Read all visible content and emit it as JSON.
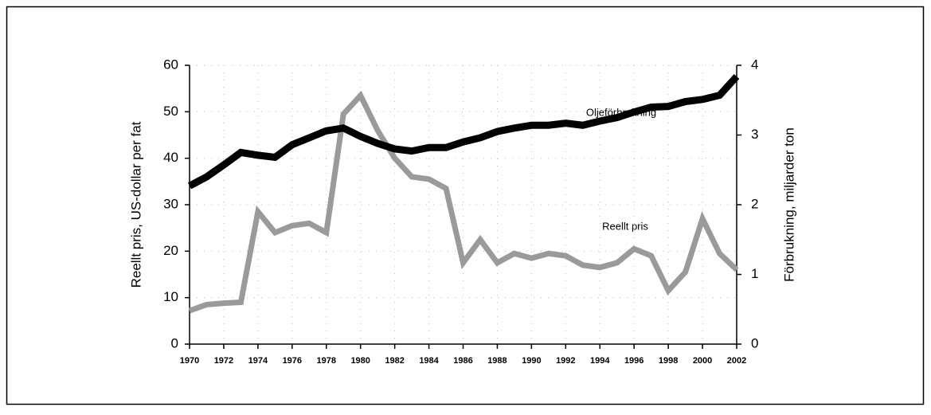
{
  "chart_data": {
    "type": "line",
    "x": [
      1970,
      1971,
      1972,
      1973,
      1974,
      1975,
      1976,
      1977,
      1978,
      1979,
      1980,
      1981,
      1982,
      1983,
      1984,
      1985,
      1986,
      1987,
      1988,
      1989,
      1990,
      1991,
      1992,
      1993,
      1994,
      1995,
      1996,
      1997,
      1998,
      1999,
      2000,
      2001,
      2002
    ],
    "xlim": [
      1970,
      2002
    ],
    "xticks": [
      1970,
      1972,
      1974,
      1976,
      1978,
      1980,
      1982,
      1984,
      1986,
      1988,
      1990,
      1992,
      1994,
      1996,
      1998,
      2000,
      2002
    ],
    "ylabel": "Reellt pris, US-dollar per fat",
    "ylim": [
      0,
      60
    ],
    "yticks": [
      0,
      10,
      20,
      30,
      40,
      50,
      60
    ],
    "y2label": "Förbrukning, miljarder ton",
    "y2lim": [
      0,
      4
    ],
    "y2ticks": [
      0,
      1,
      2,
      3,
      4
    ],
    "grid": true,
    "series": [
      {
        "name": "Reellt pris",
        "color": "#9a9a9a",
        "values": [
          7.2,
          8.5,
          8.8,
          9,
          28.5,
          24,
          25.5,
          26,
          24,
          49.5,
          53.5,
          46,
          40,
          36,
          35.5,
          33.5,
          17.5,
          22.5,
          17.5,
          19.5,
          18.5,
          19.5,
          19,
          17,
          16.5,
          17.5,
          20.5,
          19,
          11.5,
          15.5,
          27,
          19.5,
          16
        ]
      },
      {
        "name": "Oljeförbrukning",
        "color": "#000000",
        "axis": "y2",
        "values": [
          2.27,
          2.4,
          2.57,
          2.75,
          2.71,
          2.68,
          2.86,
          2.96,
          3.06,
          3.1,
          2.98,
          2.88,
          2.8,
          2.77,
          2.82,
          2.82,
          2.9,
          2.96,
          3.05,
          3.1,
          3.14,
          3.14,
          3.17,
          3.14,
          3.2,
          3.25,
          3.33,
          3.4,
          3.41,
          3.48,
          3.51,
          3.57,
          3.84
        ]
      }
    ]
  }
}
